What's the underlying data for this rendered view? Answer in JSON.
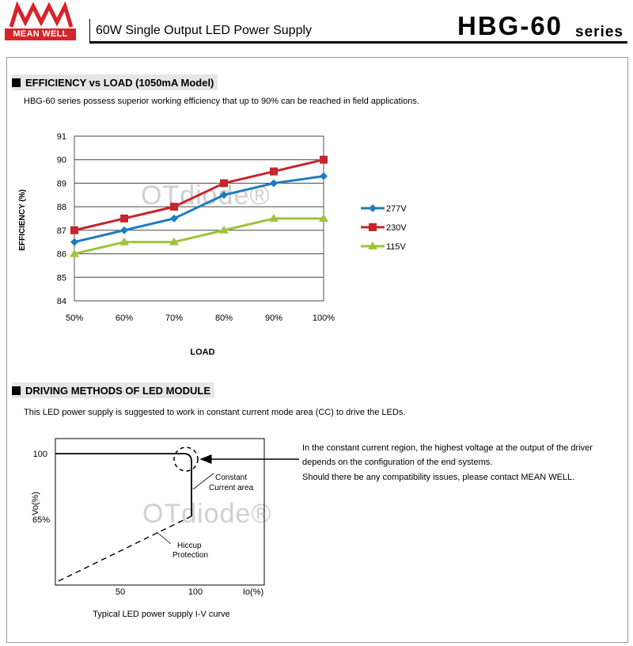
{
  "header": {
    "brand_mark": "MW",
    "brand_name": "MEAN WELL",
    "product_title": "60W Single Output LED Power Supply",
    "model": "HBG-60",
    "series_label": "series"
  },
  "watermark": "OTdiode®",
  "efficiency_section": {
    "heading": "EFFICIENCY vs LOAD (1050mA Model)",
    "description": "HBG-60 series possess superior working efficiency that up to 90% can be reached in field applications."
  },
  "chart_data": {
    "type": "line",
    "title": "",
    "xlabel": "LOAD",
    "ylabel": "EFFICIENCY (%)",
    "categories": [
      "50%",
      "60%",
      "70%",
      "80%",
      "90%",
      "100%"
    ],
    "ylim": [
      84,
      91
    ],
    "yticks": [
      "91",
      "90",
      "89",
      "88",
      "87",
      "86",
      "85",
      "84"
    ],
    "grid": true,
    "legend_position": "right",
    "series": [
      {
        "name": "277V",
        "values": [
          86.5,
          87.0,
          87.5,
          88.5,
          89.0,
          89.3
        ],
        "color": "#1f7bbf",
        "marker": "diamond"
      },
      {
        "name": "230V",
        "values": [
          87.0,
          87.5,
          88.0,
          89.0,
          89.5,
          90.0
        ],
        "color": "#c4262e",
        "marker": "square"
      },
      {
        "name": "115V",
        "values": [
          86.0,
          86.5,
          86.5,
          87.0,
          87.5,
          87.5
        ],
        "color": "#9fc33b",
        "marker": "triangle"
      }
    ]
  },
  "driving_section": {
    "heading": "DRIVING METHODS OF LED MODULE",
    "description": "This LED power supply is suggested to work in constant current mode area (CC) to drive the LEDs.",
    "iv_curve": {
      "y_axis_label": "Vo(%)",
      "y_tick_100": "100",
      "y_tick_65": "65%",
      "x_tick_50": "50",
      "x_tick_100": "100",
      "x_axis_label": "Io(%)",
      "constant_current_label_1": "Constant",
      "constant_current_label_2": "Current area",
      "hiccup_label_1": "Hiccup",
      "hiccup_label_2": "Protection",
      "caption": "Typical LED power supply I-V curve"
    },
    "notes": [
      "In the constant current region, the highest voltage at the output of the driver",
      "depends on the configuration of the end systems.",
      "Should there be any compatibility issues, please contact MEAN WELL."
    ]
  }
}
